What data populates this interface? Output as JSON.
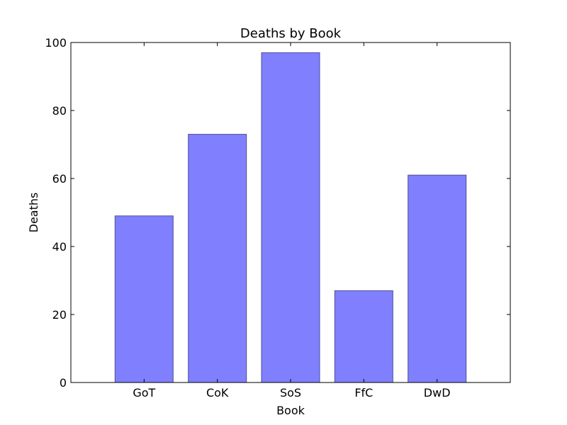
{
  "chart_data": {
    "type": "bar",
    "title": "Deaths by Book",
    "xlabel": "Book",
    "ylabel": "Deaths",
    "categories": [
      "GoT",
      "CoK",
      "SoS",
      "FfC",
      "DwD"
    ],
    "values": [
      49,
      73,
      97,
      27,
      61
    ],
    "ylim": [
      0,
      100
    ],
    "yticks": [
      "0",
      "20",
      "40",
      "60",
      "80",
      "100"
    ],
    "bar_color": "#8080ff",
    "bar_edge_color": "#4d4d99",
    "grid": false,
    "legend": "none"
  }
}
